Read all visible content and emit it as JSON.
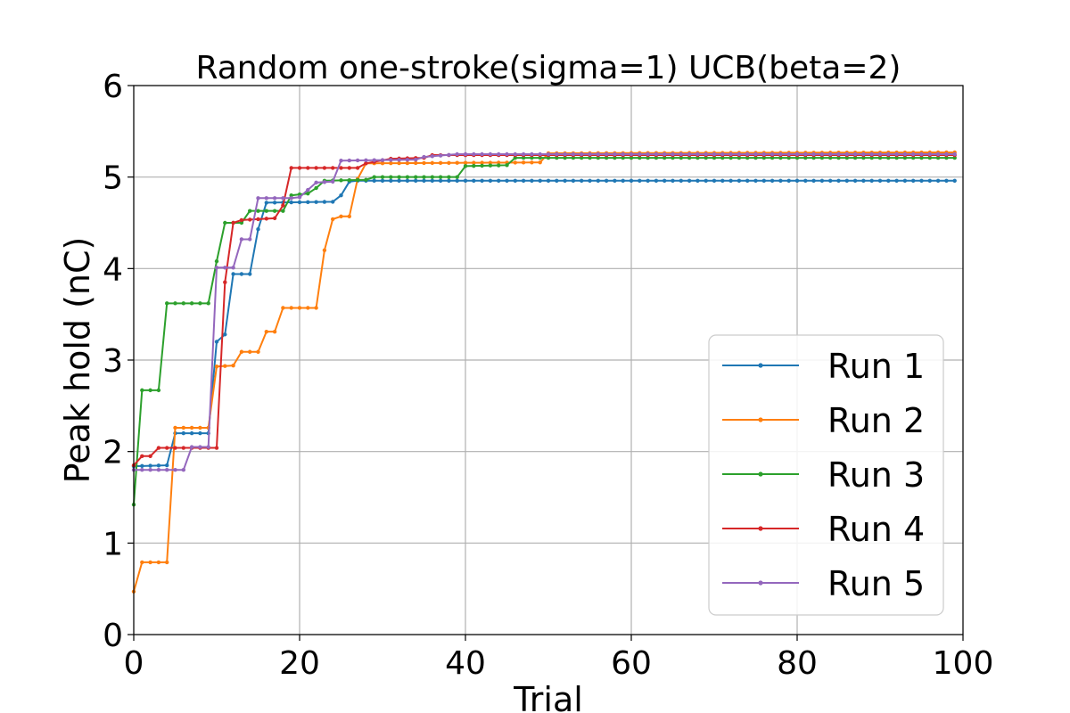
{
  "chart_data": {
    "type": "line",
    "title": "Random one-stroke(sigma=1) UCB(beta=2)",
    "xlabel": "Trial",
    "ylabel": "Peak hold (nC)",
    "xlim": [
      0,
      100
    ],
    "ylim": [
      0,
      6
    ],
    "xticks": [
      "0",
      "20",
      "40",
      "60",
      "80",
      "100"
    ],
    "yticks": [
      "0",
      "1",
      "2",
      "3",
      "4",
      "5",
      "6"
    ],
    "grid": true,
    "legend_position": "lower-right",
    "series": [
      {
        "name": "Run 1",
        "color": "#1f77b4",
        "points": [
          [
            0,
            1.84
          ],
          [
            4,
            1.85
          ],
          [
            5,
            2.2
          ],
          [
            9,
            2.2
          ],
          [
            10,
            3.2
          ],
          [
            11,
            3.28
          ],
          [
            12,
            3.94
          ],
          [
            14,
            3.94
          ],
          [
            15,
            4.43
          ],
          [
            16,
            4.72
          ],
          [
            24,
            4.73
          ],
          [
            25,
            4.8
          ],
          [
            26,
            4.95
          ],
          [
            27,
            4.96
          ],
          [
            99,
            4.96
          ]
        ]
      },
      {
        "name": "Run 2",
        "color": "#ff7f0e",
        "points": [
          [
            0,
            0.47
          ],
          [
            1,
            0.79
          ],
          [
            4,
            0.79
          ],
          [
            5,
            2.26
          ],
          [
            9,
            2.26
          ],
          [
            10,
            2.93
          ],
          [
            12,
            2.94
          ],
          [
            13,
            3.09
          ],
          [
            15,
            3.09
          ],
          [
            16,
            3.31
          ],
          [
            17,
            3.31
          ],
          [
            18,
            3.57
          ],
          [
            22,
            3.57
          ],
          [
            23,
            4.2
          ],
          [
            24,
            4.54
          ],
          [
            25,
            4.57
          ],
          [
            26,
            4.57
          ],
          [
            27,
            4.98
          ],
          [
            28,
            5.15
          ],
          [
            49,
            5.16
          ],
          [
            50,
            5.26
          ],
          [
            99,
            5.27
          ]
        ]
      },
      {
        "name": "Run 3",
        "color": "#2ca02c",
        "points": [
          [
            0,
            1.42
          ],
          [
            1,
            2.67
          ],
          [
            3,
            2.67
          ],
          [
            4,
            3.62
          ],
          [
            9,
            3.62
          ],
          [
            10,
            4.08
          ],
          [
            11,
            4.5
          ],
          [
            13,
            4.5
          ],
          [
            14,
            4.63
          ],
          [
            18,
            4.63
          ],
          [
            19,
            4.8
          ],
          [
            21,
            4.82
          ],
          [
            22,
            4.88
          ],
          [
            23,
            4.96
          ],
          [
            28,
            4.97
          ],
          [
            29,
            5.0
          ],
          [
            39,
            5.0
          ],
          [
            40,
            5.12
          ],
          [
            45,
            5.13
          ],
          [
            46,
            5.21
          ],
          [
            99,
            5.21
          ]
        ]
      },
      {
        "name": "Run 4",
        "color": "#d62728",
        "points": [
          [
            0,
            1.85
          ],
          [
            1,
            1.95
          ],
          [
            2,
            1.95
          ],
          [
            3,
            2.04
          ],
          [
            10,
            2.04
          ],
          [
            11,
            3.85
          ],
          [
            12,
            4.5
          ],
          [
            13,
            4.53
          ],
          [
            17,
            4.55
          ],
          [
            18,
            4.69
          ],
          [
            19,
            5.1
          ],
          [
            27,
            5.1
          ],
          [
            28,
            5.15
          ],
          [
            31,
            5.2
          ],
          [
            35,
            5.21
          ],
          [
            36,
            5.24
          ],
          [
            99,
            5.24
          ]
        ]
      },
      {
        "name": "Run 5",
        "color": "#9467bd",
        "points": [
          [
            0,
            1.8
          ],
          [
            6,
            1.8
          ],
          [
            7,
            2.05
          ],
          [
            9,
            2.05
          ],
          [
            10,
            4.01
          ],
          [
            12,
            4.01
          ],
          [
            13,
            4.32
          ],
          [
            14,
            4.32
          ],
          [
            15,
            4.77
          ],
          [
            19,
            4.77
          ],
          [
            20,
            4.78
          ],
          [
            22,
            4.94
          ],
          [
            24,
            4.95
          ],
          [
            25,
            5.18
          ],
          [
            34,
            5.19
          ],
          [
            35,
            5.22
          ],
          [
            39,
            5.25
          ],
          [
            99,
            5.25
          ]
        ]
      }
    ]
  }
}
